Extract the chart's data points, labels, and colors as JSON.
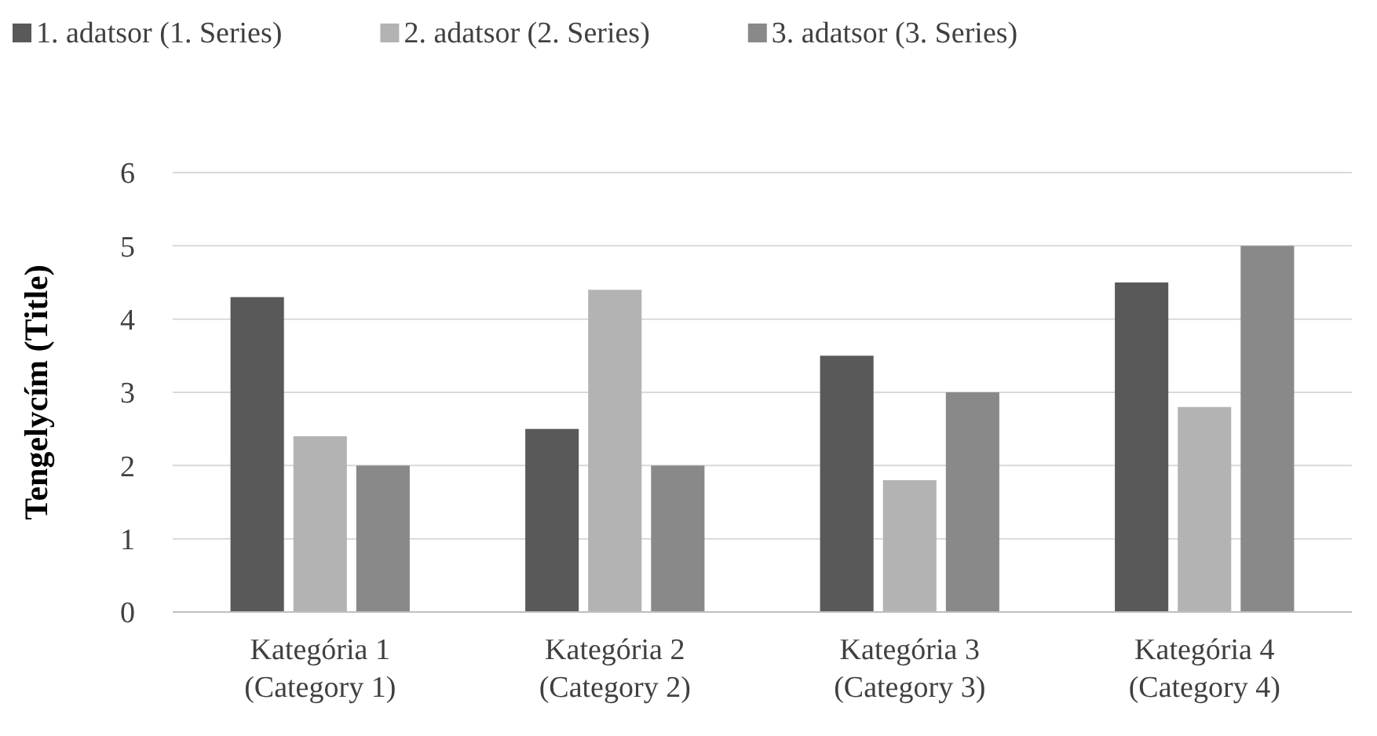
{
  "chart_data": {
    "type": "bar",
    "ylabel": "Tengelycím (Title)",
    "categories": [
      "Kategória 1\n(Category 1)",
      "Kategória 2\n(Category 2)",
      "Kategória 3\n(Category 3)",
      "Kategória 4\n(Category 4)"
    ],
    "series": [
      {
        "name": "1. adatsor (1. Series)",
        "color": "#595959",
        "values": [
          4.3,
          2.5,
          3.5,
          4.5
        ]
      },
      {
        "name": "2. adatsor (2. Series)",
        "color": "#b3b3b3",
        "values": [
          2.4,
          4.4,
          1.8,
          2.8
        ]
      },
      {
        "name": "3. adatsor (3. Series)",
        "color": "#898989",
        "values": [
          2,
          2,
          3,
          5
        ]
      }
    ],
    "ylim": [
      0,
      6
    ],
    "yticks": [
      0,
      1,
      2,
      3,
      4,
      5,
      6
    ],
    "grid": "y",
    "legend": "top"
  }
}
